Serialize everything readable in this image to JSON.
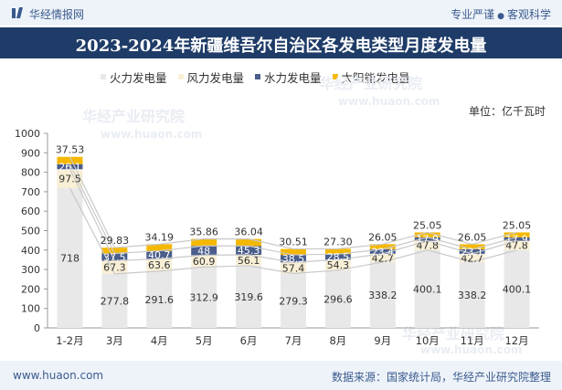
{
  "header": {
    "brand": "华经情报网",
    "tagline_left": "专业严谨",
    "tagline_right": "客观科学"
  },
  "watermark": {
    "cn": "华经产业研究院",
    "url": "www.huaon.com"
  },
  "unit_label": "单位：亿千瓦时",
  "footer": {
    "url": "www.huaon.com",
    "source": "数据来源：国家统计局，华经产业研究院整理"
  },
  "colors": {
    "header_bg": "#1f3c68",
    "thermal": "#e8e8e8",
    "wind": "#f8efd6",
    "hydro": "#4a5e8c",
    "solar": "#f5b800"
  },
  "chart_data": {
    "type": "bar",
    "stacked": true,
    "title": "2023-2024年新疆维吾尔自治区各发电类型月度发电量",
    "unit": "亿千瓦时",
    "categories": [
      "1-2月",
      "3月",
      "4月",
      "5月",
      "6月",
      "7月",
      "8月",
      "9月",
      "10月",
      "11月",
      "12月"
    ],
    "ylim": [
      0,
      1000
    ],
    "yticks": [
      0,
      100,
      200,
      300,
      400,
      500,
      600,
      700,
      800,
      900,
      1000
    ],
    "legend_position": "top",
    "grid": false,
    "series": [
      {
        "name": "火力发电量",
        "color": "#e8e8e8",
        "values": [
          718,
          277.8,
          291.6,
          312.9,
          319.6,
          279.3,
          296.6,
          338.2,
          400.1,
          338.2,
          400.1
        ]
      },
      {
        "name": "风力发电量",
        "color": "#f8efd6",
        "values": [
          97.5,
          67.3,
          63.6,
          60.9,
          56.1,
          57.4,
          54.3,
          42.7,
          47.8,
          42.7,
          47.8
        ]
      },
      {
        "name": "水力发电量",
        "color": "#4a5e8c",
        "values": [
          26.1,
          37.5,
          40.7,
          48,
          45.3,
          38.5,
          28.5,
          23.4,
          17.9,
          23.1,
          17.9
        ]
      },
      {
        "name": "太阳能发电量",
        "color": "#f5b800",
        "values": [
          37.53,
          29.83,
          34.19,
          35.86,
          36.04,
          30.51,
          27.3,
          26.05,
          25.05,
          26.05,
          25.05
        ]
      }
    ],
    "data_labels": [
      [
        "718",
        "277.8",
        "291.6",
        "312.9",
        "319.6",
        "279.3",
        "296.6",
        "338.2",
        "400.1",
        "338.2",
        "400.1"
      ],
      [
        "97.5",
        "67.3",
        "63.6",
        "60.9",
        "56.1",
        "57.4",
        "54.3",
        "42.7",
        "47.8",
        "42.7",
        "47.8"
      ],
      [
        "26.1",
        "37.5",
        "40.7",
        "48",
        "45.3",
        "38.5",
        "28.5",
        "23.4",
        "17.9",
        "23.1",
        "17.9"
      ],
      [
        "37.53",
        "29.83",
        "34.19",
        "35.86",
        "36.04",
        "30.51",
        "27.30",
        "26.05",
        "25.05",
        "26.05",
        "25.05"
      ]
    ]
  }
}
